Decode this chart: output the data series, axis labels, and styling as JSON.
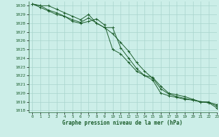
{
  "title": "",
  "xlabel": "Graphe pression niveau de la mer (hPa)",
  "ylabel": "",
  "bg_color": "#cceee8",
  "grid_color": "#a8d4cc",
  "line_color": "#1a5c2a",
  "xlim": [
    -0.5,
    23
  ],
  "ylim": [
    1017.8,
    1030.5
  ],
  "yticks": [
    1018,
    1019,
    1020,
    1021,
    1022,
    1023,
    1024,
    1025,
    1026,
    1027,
    1028,
    1029,
    1030
  ],
  "xticks": [
    0,
    1,
    2,
    3,
    4,
    5,
    6,
    7,
    8,
    9,
    10,
    11,
    12,
    13,
    14,
    15,
    16,
    17,
    18,
    19,
    20,
    21,
    22,
    23
  ],
  "series": [
    [
      1030.2,
      1030.0,
      1030.0,
      1029.6,
      1029.2,
      1028.8,
      1028.4,
      1029.0,
      1028.0,
      1027.5,
      1027.5,
      1025.2,
      1024.0,
      1022.8,
      1022.0,
      1021.8,
      1020.8,
      1020.0,
      1019.8,
      1019.6,
      1019.3,
      1019.0,
      1019.0,
      1018.5
    ],
    [
      1030.2,
      1029.8,
      1029.4,
      1029.0,
      1028.8,
      1028.2,
      1028.0,
      1028.2,
      1028.5,
      1027.8,
      1025.0,
      1024.5,
      1023.5,
      1022.5,
      1022.0,
      1021.5,
      1020.0,
      1019.7,
      1019.5,
      1019.3,
      1019.2,
      1019.0,
      1018.9,
      1018.3
    ],
    [
      1030.2,
      1030.0,
      1029.5,
      1029.2,
      1028.8,
      1028.4,
      1028.1,
      1028.6,
      1028.0,
      1027.5,
      1026.8,
      1025.8,
      1024.8,
      1023.5,
      1022.5,
      1021.7,
      1020.5,
      1019.9,
      1019.6,
      1019.4,
      1019.2,
      1019.0,
      1018.9,
      1018.7
    ]
  ]
}
